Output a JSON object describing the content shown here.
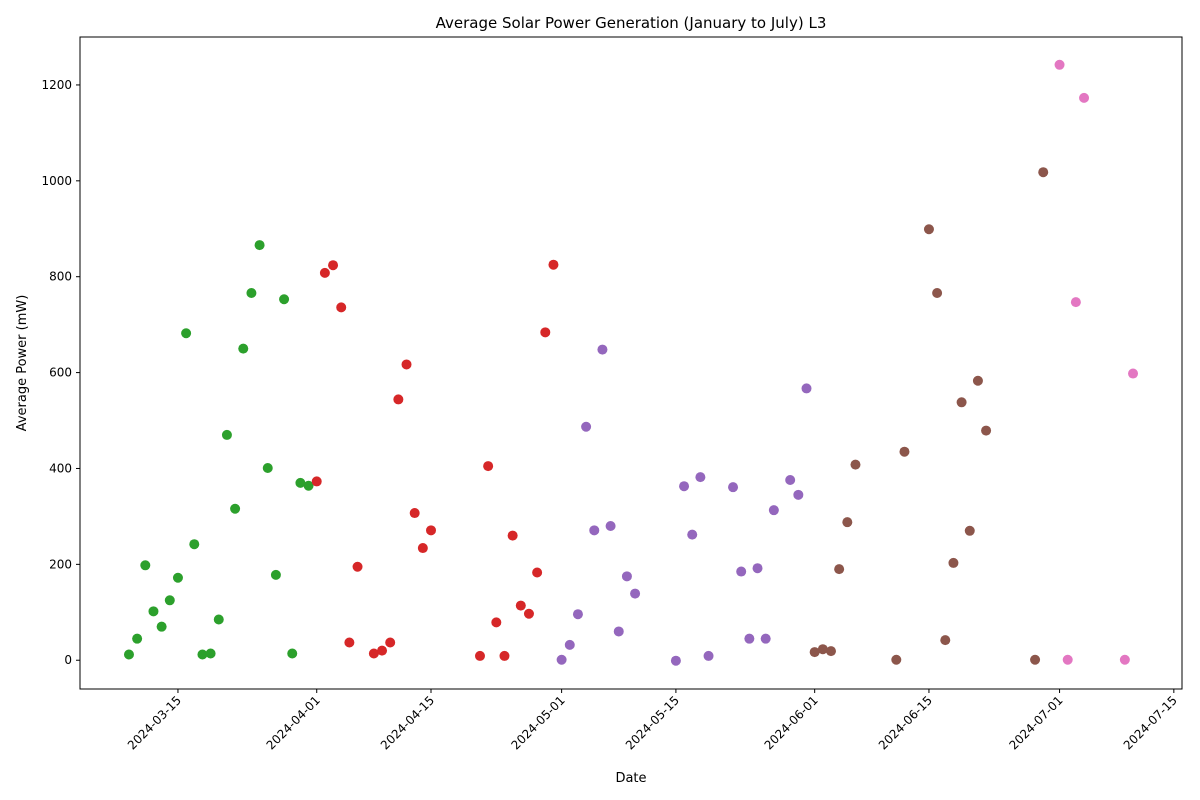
{
  "chart_data": {
    "type": "scatter",
    "title": "Average Solar Power Generation (January to July) L3",
    "xlabel": "Date",
    "ylabel": "Average Power (mW)",
    "xlim": [
      "2024-03-03",
      "2024-07-16"
    ],
    "ylim": [
      -60,
      1300
    ],
    "x_ticks": [
      "2024-03-15",
      "2024-04-01",
      "2024-04-15",
      "2024-05-01",
      "2024-05-15",
      "2024-06-01",
      "2024-06-15",
      "2024-07-01",
      "2024-07-15"
    ],
    "y_ticks": [
      0,
      200,
      400,
      600,
      800,
      1000,
      1200
    ],
    "grid": false,
    "legend": "none",
    "series": [
      {
        "color": "#2ca02c",
        "points": [
          {
            "x": "2024-03-09",
            "y": 12
          },
          {
            "x": "2024-03-10",
            "y": 45
          },
          {
            "x": "2024-03-11",
            "y": 198
          },
          {
            "x": "2024-03-12",
            "y": 102
          },
          {
            "x": "2024-03-13",
            "y": 70
          },
          {
            "x": "2024-03-14",
            "y": 125
          },
          {
            "x": "2024-03-15",
            "y": 172
          },
          {
            "x": "2024-03-16",
            "y": 682
          },
          {
            "x": "2024-03-17",
            "y": 242
          },
          {
            "x": "2024-03-18",
            "y": 12
          },
          {
            "x": "2024-03-19",
            "y": 14
          },
          {
            "x": "2024-03-20",
            "y": 85
          },
          {
            "x": "2024-03-21",
            "y": 470
          },
          {
            "x": "2024-03-22",
            "y": 316
          },
          {
            "x": "2024-03-23",
            "y": 650
          },
          {
            "x": "2024-03-24",
            "y": 766
          },
          {
            "x": "2024-03-25",
            "y": 866
          },
          {
            "x": "2024-03-26",
            "y": 401
          },
          {
            "x": "2024-03-27",
            "y": 178
          },
          {
            "x": "2024-03-28",
            "y": 753
          },
          {
            "x": "2024-03-29",
            "y": 14
          },
          {
            "x": "2024-03-30",
            "y": 370
          },
          {
            "x": "2024-03-31",
            "y": 364
          }
        ]
      },
      {
        "color": "#d62728",
        "points": [
          {
            "x": "2024-04-01",
            "y": 373
          },
          {
            "x": "2024-04-02",
            "y": 808
          },
          {
            "x": "2024-04-03",
            "y": 824
          },
          {
            "x": "2024-04-04",
            "y": 736
          },
          {
            "x": "2024-04-05",
            "y": 37
          },
          {
            "x": "2024-04-06",
            "y": 195
          },
          {
            "x": "2024-04-08",
            "y": 14
          },
          {
            "x": "2024-04-09",
            "y": 20
          },
          {
            "x": "2024-04-10",
            "y": 37
          },
          {
            "x": "2024-04-11",
            "y": 544
          },
          {
            "x": "2024-04-12",
            "y": 617
          },
          {
            "x": "2024-04-13",
            "y": 307
          },
          {
            "x": "2024-04-14",
            "y": 234
          },
          {
            "x": "2024-04-15",
            "y": 271
          },
          {
            "x": "2024-04-21",
            "y": 9
          },
          {
            "x": "2024-04-22",
            "y": 405
          },
          {
            "x": "2024-04-23",
            "y": 79
          },
          {
            "x": "2024-04-24",
            "y": 9
          },
          {
            "x": "2024-04-25",
            "y": 260
          },
          {
            "x": "2024-04-26",
            "y": 114
          },
          {
            "x": "2024-04-27",
            "y": 97
          },
          {
            "x": "2024-04-28",
            "y": 183
          },
          {
            "x": "2024-04-29",
            "y": 684
          },
          {
            "x": "2024-04-30",
            "y": 825
          }
        ]
      },
      {
        "color": "#9467bd",
        "points": [
          {
            "x": "2024-05-01",
            "y": 1
          },
          {
            "x": "2024-05-02",
            "y": 32
          },
          {
            "x": "2024-05-03",
            "y": 96
          },
          {
            "x": "2024-05-04",
            "y": 487
          },
          {
            "x": "2024-05-05",
            "y": 271
          },
          {
            "x": "2024-05-06",
            "y": 648
          },
          {
            "x": "2024-05-07",
            "y": 280
          },
          {
            "x": "2024-05-08",
            "y": 60
          },
          {
            "x": "2024-05-09",
            "y": 175
          },
          {
            "x": "2024-05-10",
            "y": 139
          },
          {
            "x": "2024-05-15",
            "y": -1
          },
          {
            "x": "2024-05-16",
            "y": 363
          },
          {
            "x": "2024-05-17",
            "y": 262
          },
          {
            "x": "2024-05-18",
            "y": 382
          },
          {
            "x": "2024-05-19",
            "y": 9
          },
          {
            "x": "2024-05-22",
            "y": 361
          },
          {
            "x": "2024-05-23",
            "y": 185
          },
          {
            "x": "2024-05-24",
            "y": 45
          },
          {
            "x": "2024-05-25",
            "y": 192
          },
          {
            "x": "2024-05-26",
            "y": 45
          },
          {
            "x": "2024-05-27",
            "y": 313
          },
          {
            "x": "2024-05-29",
            "y": 376
          },
          {
            "x": "2024-05-30",
            "y": 345
          },
          {
            "x": "2024-05-31",
            "y": 567
          }
        ]
      },
      {
        "color": "#8c564b",
        "points": [
          {
            "x": "2024-06-01",
            "y": 17
          },
          {
            "x": "2024-06-02",
            "y": 23
          },
          {
            "x": "2024-06-03",
            "y": 19
          },
          {
            "x": "2024-06-04",
            "y": 190
          },
          {
            "x": "2024-06-05",
            "y": 288
          },
          {
            "x": "2024-06-06",
            "y": 408
          },
          {
            "x": "2024-06-11",
            "y": 1
          },
          {
            "x": "2024-06-12",
            "y": 435
          },
          {
            "x": "2024-06-15",
            "y": 899
          },
          {
            "x": "2024-06-16",
            "y": 766
          },
          {
            "x": "2024-06-17",
            "y": 42
          },
          {
            "x": "2024-06-18",
            "y": 203
          },
          {
            "x": "2024-06-19",
            "y": 538
          },
          {
            "x": "2024-06-20",
            "y": 270
          },
          {
            "x": "2024-06-21",
            "y": 583
          },
          {
            "x": "2024-06-22",
            "y": 479
          },
          {
            "x": "2024-06-28",
            "y": 1
          },
          {
            "x": "2024-06-29",
            "y": 1018
          }
        ]
      },
      {
        "color": "#e377c2",
        "points": [
          {
            "x": "2024-07-01",
            "y": 1242
          },
          {
            "x": "2024-07-02",
            "y": 1
          },
          {
            "x": "2024-07-03",
            "y": 747
          },
          {
            "x": "2024-07-04",
            "y": 1173
          },
          {
            "x": "2024-07-09",
            "y": 1
          },
          {
            "x": "2024-07-10",
            "y": 598
          }
        ]
      }
    ]
  }
}
